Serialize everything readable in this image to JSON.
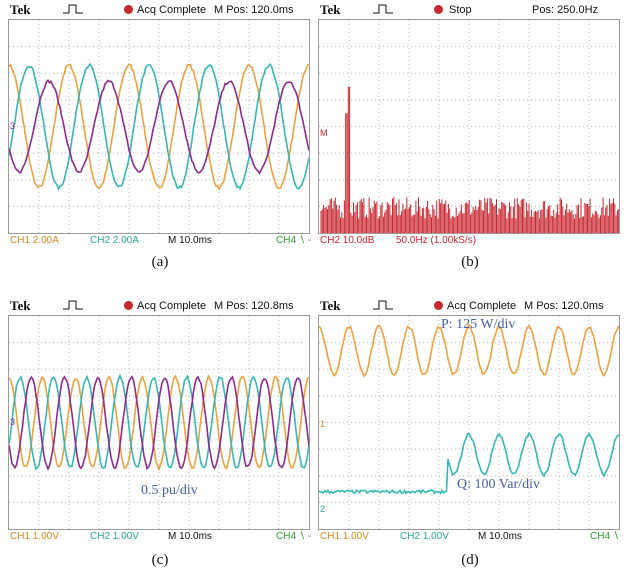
{
  "colors": {
    "ch1": "#f0a03c",
    "ch2": "#34b8b4",
    "ch3": "#8e2a8e",
    "fft": "#c8262e",
    "grid": "#b8b8b8",
    "annotation": "#3f5fa6"
  },
  "panels": [
    {
      "id": "a",
      "brand": "Tek",
      "status": "Acq Complete",
      "mpos": "M Pos: 120.0ms",
      "footer": {
        "ch1": "CH1  2.00A",
        "ch2": "CH2  2.00A",
        "time": "M 10.0ms",
        "trig": "CH4 ∖ -"
      },
      "marker": "3",
      "caption": "(a)"
    },
    {
      "id": "b",
      "brand": "Tek",
      "status": "Stop",
      "mpos": "Pos: 250.0Hz",
      "footer": {
        "ch1": "CH2 10.0dB",
        "ch2": "50.0Hz (1.00kS/s)"
      },
      "marker": "M",
      "caption": "(b)"
    },
    {
      "id": "c",
      "brand": "Tek",
      "status": "Acq Complete",
      "mpos": "M Pos: 120.8ms",
      "footer": {
        "ch1": "CH1  1.00V",
        "ch2": "CH2  1.00V",
        "time": "M 10.0ms",
        "trig": "CH4 ∖ -"
      },
      "marker": "3",
      "annotation": "0.5 pu/div",
      "caption": "(c)"
    },
    {
      "id": "d",
      "brand": "Tek",
      "status": "Acq Complete",
      "mpos": "M Pos: 120.0ms",
      "footer": {
        "ch1": "CH1  1.00V",
        "ch2": "CH2  1.00V",
        "time": "M 10.0ms",
        "trig": "CH4 ∖"
      },
      "marker1": "1",
      "marker2": "2",
      "annotation_p": "P: 125 W/div",
      "annotation_q": "Q: 100 Var/div",
      "caption": "(d)"
    }
  ],
  "chart_data": [
    {
      "type": "line",
      "panel": "a",
      "x_unit": "ms",
      "x_per_div": 10,
      "divisions": {
        "x": 10,
        "y": 8
      },
      "series": [
        {
          "name": "CH1",
          "amplitude_div": 2.3,
          "offset_div": 0,
          "cycles_on_screen": 5,
          "phase_deg": 90
        },
        {
          "name": "CH2",
          "amplitude_div": 2.3,
          "offset_div": 0,
          "cycles_on_screen": 5,
          "phase_deg": 330
        },
        {
          "name": "CH3",
          "amplitude_div": 1.7,
          "offset_div": 0,
          "cycles_on_screen": 5,
          "phase_deg": 210
        }
      ]
    },
    {
      "type": "bar",
      "panel": "b",
      "x_unit": "Hz",
      "x_per_div": 50,
      "y_per_div_db": 10,
      "fundamental_hz": 50,
      "fundamental_level_div": 5.5,
      "second_peak_level_div": 4.5,
      "noise_floor_div": 0.9
    },
    {
      "type": "line",
      "panel": "c",
      "x_unit": "ms",
      "x_per_div": 10,
      "divisions": {
        "x": 10,
        "y": 8
      },
      "series": [
        {
          "name": "CH1",
          "amplitude_div": 1.7,
          "offset_div": 0,
          "cycles_on_screen": 9,
          "phase_deg": 90
        },
        {
          "name": "CH2",
          "amplitude_div": 1.7,
          "offset_div": 0,
          "cycles_on_screen": 9,
          "phase_deg": 330
        },
        {
          "name": "CH3",
          "amplitude_div": 1.7,
          "offset_div": 0,
          "cycles_on_screen": 9,
          "phase_deg": 210
        }
      ]
    },
    {
      "type": "line",
      "panel": "d",
      "x_unit": "ms",
      "x_per_div": 10,
      "divisions": {
        "x": 10,
        "y": 8
      },
      "series": [
        {
          "name": "CH1",
          "amplitude_div": 0.9,
          "offset_div": 2.7,
          "cycles_on_screen": 10,
          "phase_deg": 90
        },
        {
          "name": "CH2",
          "amplitude_div": 0.75,
          "offset_div": -1.2,
          "cycles_on_screen": 10,
          "phase_deg": 90,
          "step_at_div": 4.3,
          "pre_step_level_div": -2.6
        }
      ]
    }
  ]
}
